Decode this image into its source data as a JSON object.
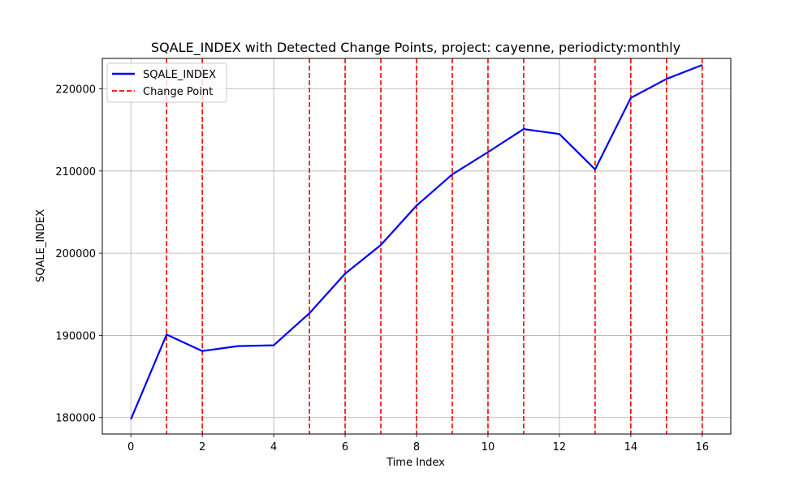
{
  "chart_data": {
    "type": "line",
    "title": "SQALE_INDEX with Detected Change Points, project: cayenne, periodicty:monthly",
    "xlabel": "Time Index",
    "ylabel": "SQALE_INDEX",
    "xlim": [
      -0.8,
      16.8
    ],
    "ylim": [
      178000,
      223700
    ],
    "xticks": [
      0,
      2,
      4,
      6,
      8,
      10,
      12,
      14,
      16
    ],
    "yticks": [
      180000,
      190000,
      200000,
      210000,
      220000
    ],
    "grid": true,
    "legend_position": "upper-left",
    "series": [
      {
        "name": "SQALE_INDEX",
        "color": "#0000ff",
        "x": [
          0,
          1,
          2,
          3,
          4,
          5,
          6,
          7,
          8,
          9,
          10,
          11,
          12,
          13,
          14,
          15,
          16
        ],
        "values": [
          179800,
          190100,
          188100,
          188700,
          188800,
          192700,
          197500,
          201000,
          205800,
          209600,
          212300,
          215100,
          214500,
          210200,
          218900,
          221200,
          222900
        ]
      }
    ],
    "change_points": {
      "name": "Change Point",
      "color": "#ff0000",
      "x": [
        1,
        2,
        5,
        6,
        7,
        8,
        9,
        10,
        11,
        13,
        14,
        15,
        16
      ]
    }
  }
}
